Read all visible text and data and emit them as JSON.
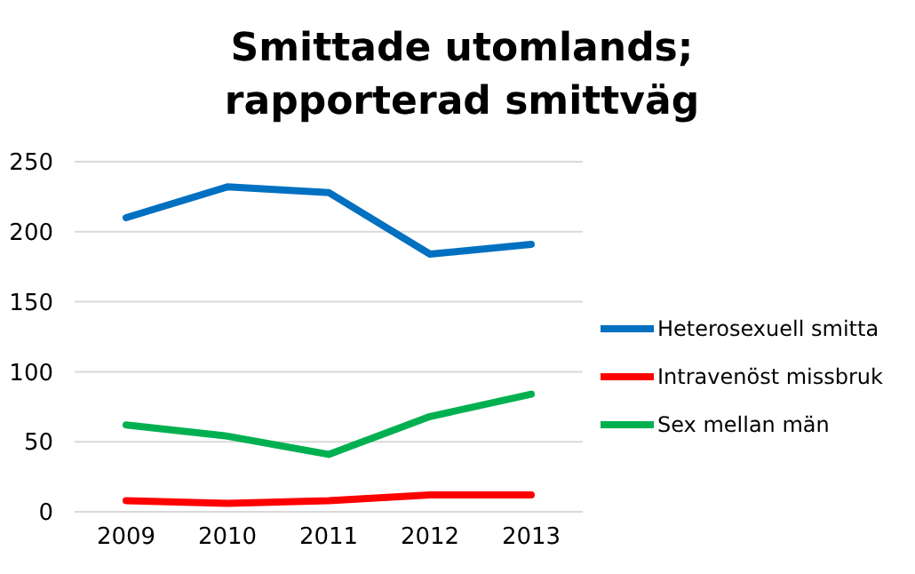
{
  "chart_data": {
    "type": "line",
    "title": "Smittade utomlands;\nrapporterad smittväg",
    "categories": [
      "2009",
      "2010",
      "2011",
      "2012",
      "2013"
    ],
    "series": [
      {
        "name": "Heterosexuell smitta",
        "color": "#0070c0",
        "values": [
          210,
          232,
          228,
          184,
          191
        ]
      },
      {
        "name": "Intravenöst missbruk",
        "color": "#ff0000",
        "values": [
          8,
          6,
          8,
          12,
          12
        ]
      },
      {
        "name": "Sex mellan män",
        "color": "#00b050",
        "values": [
          62,
          54,
          41,
          68,
          84
        ]
      }
    ],
    "ylim": [
      0,
      250
    ],
    "yticks": [
      0,
      50,
      100,
      150,
      200,
      250
    ],
    "grid": "y",
    "legend": "right",
    "marker": "none",
    "line_style": "solid"
  }
}
